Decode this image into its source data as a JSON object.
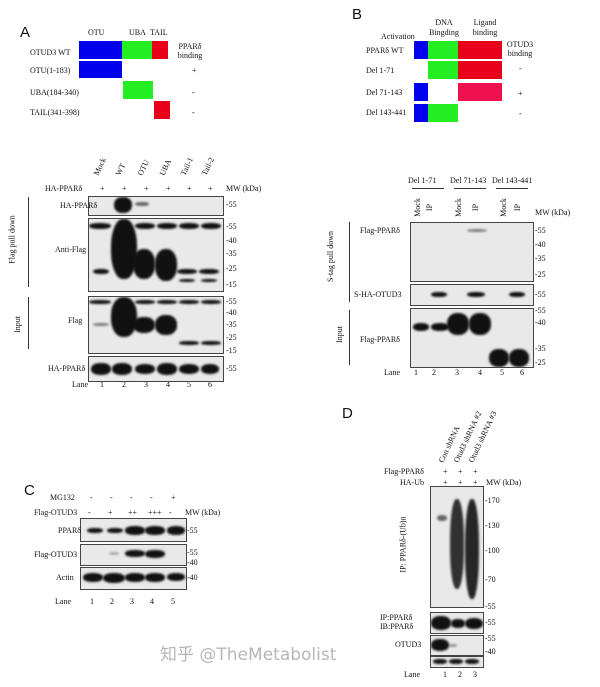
{
  "panels": {
    "a": "A",
    "b": "B",
    "c": "C",
    "d": "D"
  },
  "panelA": {
    "domains": [
      "OTU",
      "UBA",
      "TAIL"
    ],
    "binding_header": "PPARδ binding",
    "constructs": [
      {
        "label": "OTUD3 WT",
        "binding": ""
      },
      {
        "label": "OTU(1-183)",
        "binding": "+"
      },
      {
        "label": "UBA(184-340)",
        "binding": "-"
      },
      {
        "label": "TAIL(341-398)",
        "binding": "-"
      }
    ],
    "lanes": [
      "Mock",
      "WT",
      "OTU",
      "UBA",
      "Tail-1",
      "Tail-2"
    ],
    "row_label": "HA-PPARδ",
    "row_values": [
      "+",
      "+",
      "+",
      "+",
      "+",
      "+"
    ],
    "mw_header": "MW (kDa)",
    "blots": [
      {
        "label": "HA-PPARδ",
        "mw": [
          "-55"
        ]
      },
      {
        "label": "Anti-Flag",
        "mw": [
          "-55",
          "-40",
          "-35",
          "-25",
          "-15"
        ]
      },
      {
        "label": "Flag",
        "mw": [
          "-55",
          "-40",
          "-35",
          "-25",
          "-15"
        ]
      },
      {
        "label": "HA-PPARδ",
        "mw": [
          "-55"
        ]
      }
    ],
    "side_labels": [
      "Flag pull down",
      "Input"
    ],
    "lane_label": "Lane",
    "lane_numbers": [
      "1",
      "2",
      "3",
      "4",
      "5",
      "6"
    ]
  },
  "panelB": {
    "domains": [
      "Activation",
      "DNA Bingding",
      "Ligand binding"
    ],
    "binding_header": "OTUD3 binding",
    "constructs": [
      {
        "label": "PPARδ WT",
        "binding": ""
      },
      {
        "label": "Del 1-71",
        "binding": "-"
      },
      {
        "label": "Del 71-143",
        "binding": "+"
      },
      {
        "label": "Del 143-441",
        "binding": "-"
      }
    ],
    "groups": [
      "Del  1-71",
      "Del  71-143",
      "Del  143-441"
    ],
    "lanes": [
      "Mock",
      "IP",
      "Mock",
      "IP",
      "Mock",
      "IP"
    ],
    "mw_header": "MW (kDa)",
    "blots": [
      {
        "label": "Flag-PPARδ",
        "mw": [
          "-55",
          "-40",
          "-35",
          "-25"
        ]
      },
      {
        "label": "S-HA-OTUD3",
        "mw": [
          "-55"
        ]
      },
      {
        "label": "Flag-PPARδ",
        "mw": [
          "-55",
          "-40",
          "-35",
          "-25"
        ]
      }
    ],
    "side_labels": [
      "S-tag pull down",
      "Input"
    ],
    "lane_label": "Lane",
    "lane_numbers": [
      "1",
      "2",
      "3",
      "4",
      "5",
      "6"
    ]
  },
  "panelC": {
    "rows": [
      {
        "label": "MG132",
        "values": [
          "-",
          "-",
          "-",
          "-",
          "+"
        ]
      },
      {
        "label": "Flag-OTUD3",
        "values": [
          "-",
          "+",
          "++",
          "+++",
          "-"
        ]
      }
    ],
    "mw_header": "MW (kDa)",
    "blots": [
      {
        "label": "PPARδ",
        "mw": [
          "-55"
        ]
      },
      {
        "label": "Flag-OTUD3",
        "mw": [
          "-55",
          "-40"
        ]
      },
      {
        "label": "Actin",
        "mw": [
          "-40"
        ]
      }
    ],
    "lane_label": "Lane",
    "lane_numbers": [
      "1",
      "2",
      "3",
      "4",
      "5"
    ]
  },
  "panelD": {
    "lanes": [
      "Con shRNA",
      "Otud3 shRNA #2",
      "Otud3 shRNA #3"
    ],
    "rows": [
      {
        "label": "Flag-PPARδ",
        "values": [
          "+",
          "+",
          "+"
        ]
      },
      {
        "label": "HA-Ub",
        "values": [
          "+",
          "+",
          "+"
        ]
      }
    ],
    "mw_header": "MW (kDa)",
    "blots": [
      {
        "label": "IP: PPARδ-(Ub)n",
        "mw": [
          "-170",
          "-130",
          "-100",
          "-70",
          "-55"
        ]
      },
      {
        "label": "IP:PPARδ\nIB:PPARδ",
        "label1": "IP:PPARδ",
        "label2": "IB:PPARδ",
        "mw": [
          "-55"
        ]
      },
      {
        "label": "OTUD3",
        "mw": [
          "-55",
          "-40"
        ]
      },
      {
        "label": "Actin",
        "mw": []
      }
    ],
    "lane_label": "Lane",
    "lane_numbers": [
      "1",
      "2",
      "3"
    ]
  },
  "watermark": "知乎 @TheMetabolist",
  "colors": {
    "otu": "#0000ee",
    "uba": "#22ee22",
    "tail": "#e8001a",
    "ligand_del": "#f01050"
  }
}
